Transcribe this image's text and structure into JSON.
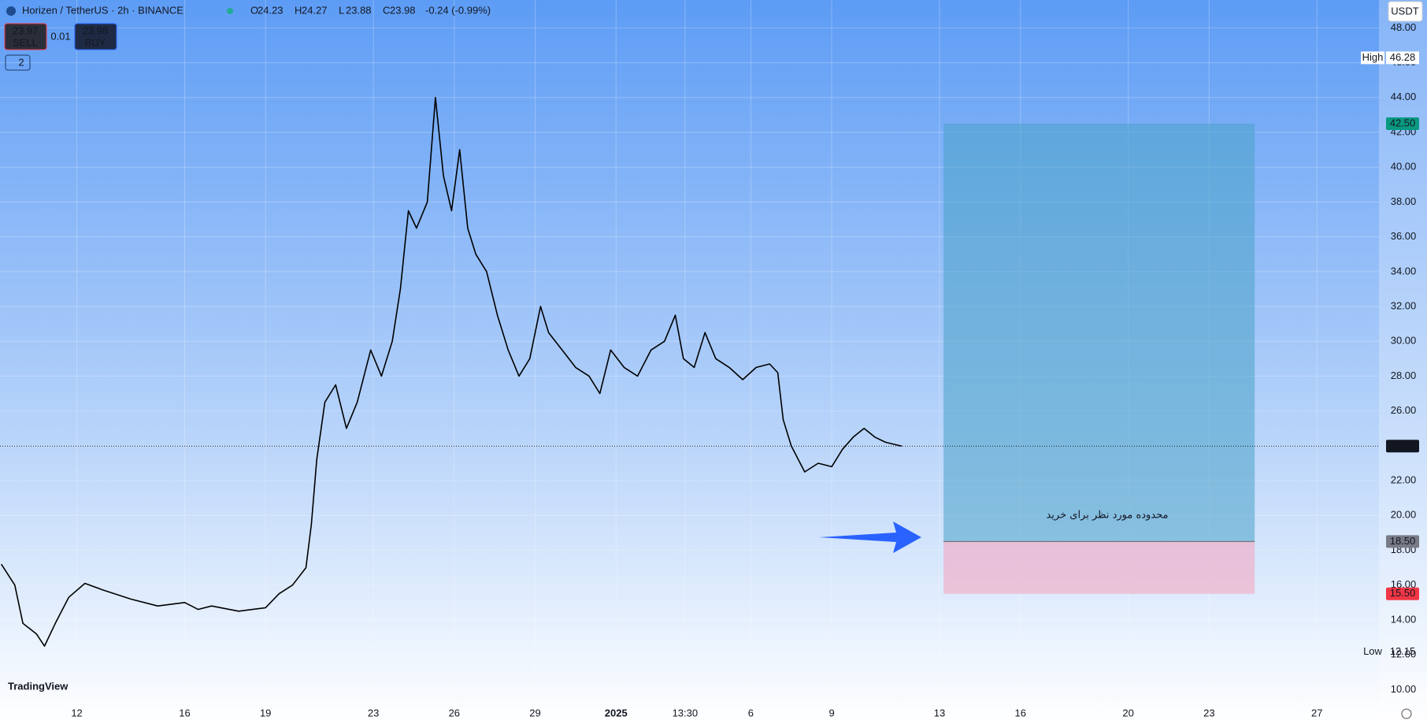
{
  "chart_data": {
    "type": "line",
    "title": "Horizen / TetherUS · 2h · BINANCE",
    "ohlc": [
      {
        "key": "O",
        "text": "24.23"
      },
      {
        "key": "H",
        "text": "24.27"
      },
      {
        "key": "L",
        "text": "23.88"
      },
      {
        "key": "C",
        "text": "23.98"
      }
    ],
    "change": "-0.24 (-0.99%)",
    "trade": {
      "sell_price": "23.97",
      "sell": "SELL",
      "spread": "0.01",
      "buy_price": "23.98",
      "buy": "BUY"
    },
    "indicators_badge": "2",
    "currency": "USDT",
    "logo": "TradingView",
    "annotation": "محدوده مورد نظر برای خرید",
    "x": [
      9.2,
      9.7,
      10.0,
      10.5,
      10.8,
      11.2,
      11.7,
      12.3,
      13,
      14,
      15,
      16,
      16.5,
      17,
      18,
      19,
      19.5,
      20,
      20.5,
      20.7,
      20.9,
      21.2,
      21.6,
      22,
      22.4,
      22.9,
      23.3,
      23.7,
      24,
      24.3,
      24.6,
      25,
      25.3,
      25.6,
      25.9,
      26.2,
      26.5,
      26.8,
      27.2,
      27.6,
      28,
      28.4,
      28.8,
      29.2,
      29.5,
      30,
      30.5,
      31,
      31.4,
      31.8,
      32.3,
      32.8,
      33.3,
      33.8,
      34.2,
      34.5,
      34.9,
      35.3,
      35.7,
      36.2,
      36.7,
      37.2,
      37.7,
      38,
      38.2,
      38.5,
      39,
      39.5,
      40,
      40.4,
      40.8,
      41.2,
      41.6,
      42,
      42.6
    ],
    "series": [
      {
        "color": "#000000",
        "values": [
          17.2,
          16.0,
          13.8,
          13.2,
          12.5,
          13.8,
          15.3,
          16.1,
          15.7,
          15.2,
          14.8,
          15.0,
          14.6,
          14.8,
          14.5,
          14.7,
          15.5,
          16.0,
          17.0,
          19.5,
          23.2,
          26.5,
          27.5,
          25.0,
          26.5,
          29.5,
          28.0,
          30.0,
          33,
          37.5,
          36.5,
          38,
          44,
          39.5,
          37.5,
          41,
          36.5,
          35,
          34,
          31.5,
          29.5,
          28,
          29,
          32,
          30.5,
          29.5,
          28.5,
          28.0,
          27.0,
          29.5,
          28.5,
          28.0,
          29.5,
          30,
          31.5,
          29,
          28.5,
          30.5,
          29,
          28.5,
          27.8,
          28.5,
          28.7,
          28.2,
          25.5,
          24,
          22.5,
          23,
          22.8,
          23.8,
          24.5,
          25.0,
          24.5,
          24.2,
          23.98
        ]
      }
    ],
    "xlim": [
      9.15,
      60.3
    ],
    "xticks": [
      {
        "value": 12,
        "label": "12"
      },
      {
        "value": 16,
        "label": "16"
      },
      {
        "value": 19,
        "label": "19"
      },
      {
        "value": 23,
        "label": "23"
      },
      {
        "value": 26,
        "label": "26"
      },
      {
        "value": 29,
        "label": "29"
      },
      {
        "value": 32,
        "label": "2025"
      },
      {
        "value": 34.56,
        "label": "13:30"
      },
      {
        "value": 37,
        "label": "6"
      },
      {
        "value": 40,
        "label": "9"
      },
      {
        "value": 44,
        "label": "13"
      },
      {
        "value": 47,
        "label": "16"
      },
      {
        "value": 51,
        "label": "20"
      },
      {
        "value": 54,
        "label": "23"
      },
      {
        "value": 58,
        "label": "27"
      }
    ],
    "ylim": [
      9.2,
      49.6
    ],
    "yticks": [
      {
        "value": 10,
        "label": "10.00"
      },
      {
        "value": 12,
        "label": "12.00"
      },
      {
        "value": 14,
        "label": "14.00"
      },
      {
        "value": 16,
        "label": "16.00"
      },
      {
        "value": 18,
        "label": "18.00"
      },
      {
        "value": 20,
        "label": "20.00"
      },
      {
        "value": 22,
        "label": "22.00"
      },
      {
        "value": 24,
        "label": "24.00"
      },
      {
        "value": 26,
        "label": "26.00"
      },
      {
        "value": 28,
        "label": "28.00"
      },
      {
        "value": 30,
        "label": "30.00"
      },
      {
        "value": 32,
        "label": "32.00"
      },
      {
        "value": 34,
        "label": "34.00"
      },
      {
        "value": 36,
        "label": "36.00"
      },
      {
        "value": 38,
        "label": "38.00"
      },
      {
        "value": 40,
        "label": "40.00"
      },
      {
        "value": 42,
        "label": "42.00"
      },
      {
        "value": 44,
        "label": "44.00"
      },
      {
        "value": 46,
        "label": "46.00"
      },
      {
        "value": 48,
        "label": "48.00"
      }
    ],
    "grid": true,
    "last_price": {
      "value": 23.98,
      "label": "23.98"
    },
    "high": {
      "text": "High",
      "value": 46.28
    },
    "low": {
      "text": "Low",
      "value": 12.15
    },
    "position": {
      "x": [
        44.15,
        55.69
      ],
      "target": {
        "value": 42.5,
        "label": "42.50"
      },
      "entry": {
        "value": 18.5,
        "label": "18.50"
      },
      "stop": {
        "value": 15.5,
        "label": "15.50"
      },
      "profit_color": "#4aa3c8",
      "loss_color": "#f2a9c2"
    }
  }
}
